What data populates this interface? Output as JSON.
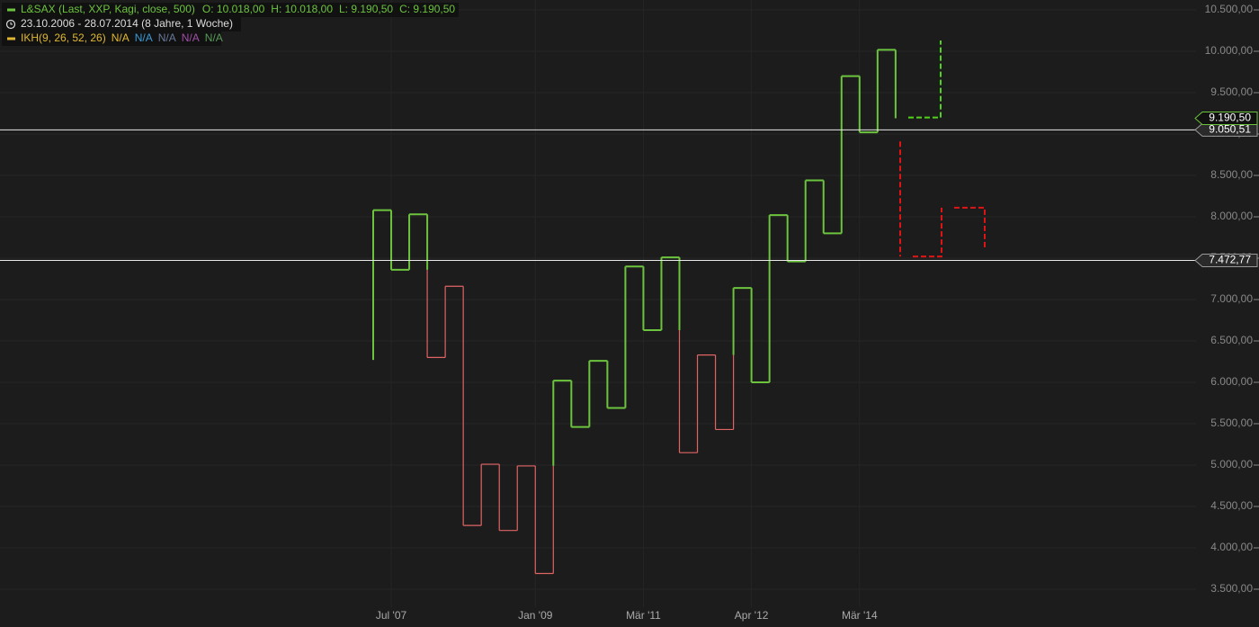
{
  "chart_data": {
    "type": "kagi",
    "legend": {
      "instrument": "L&SAX (Last, XXP, Kagi, close, 500)",
      "open": "O: 10.018,00",
      "high": "H: 10.018,00",
      "low": "L: 9.190,50",
      "close": "C: 9.190,50",
      "period": "23.10.2006 - 28.07.2014 (8 Jahre, 1 Woche)",
      "indicator": "IKH(9, 26, 52, 26)",
      "indicator_values": [
        {
          "label": "N/A",
          "color": "#e0b830"
        },
        {
          "label": "N/A",
          "color": "#3a9ad8"
        },
        {
          "label": "N/A",
          "color": "#6a7a9a"
        },
        {
          "label": "N/A",
          "color": "#a050a8"
        },
        {
          "label": "N/A",
          "color": "#5a9a5a"
        }
      ],
      "indicator_color": "#e0b830"
    },
    "categories": [
      null,
      "Jul '07",
      null,
      null,
      null,
      null,
      null,
      null,
      null,
      "Jan '09",
      null,
      null,
      null,
      null,
      null,
      "Mär '11",
      null,
      null,
      null,
      null,
      null,
      "Apr '12",
      null,
      null,
      null,
      null,
      null,
      "Mär '14",
      null,
      null
    ],
    "start_value": 6270,
    "series": [
      {
        "name": "L&SAX (Last, XXP, Kagi, close, 500)",
        "yang_color": "#6cc43e",
        "yin_color": "#e06464",
        "values": [
          8080,
          7360,
          8030,
          6300,
          7160,
          4270,
          5010,
          4210,
          4990,
          3690,
          6020,
          5460,
          6260,
          5690,
          7400,
          6630,
          7510,
          5150,
          6330,
          5430,
          7140,
          6000,
          8020,
          7460,
          8440,
          7800,
          9700,
          9020,
          10018,
          9190.5
        ]
      }
    ],
    "projections": [
      {
        "color": "#4fd41a",
        "values": [
          9200,
          10130
        ]
      },
      {
        "color": "#e01414",
        "values": [
          8910,
          7520,
          8110,
          7630
        ]
      }
    ],
    "last_price": {
      "value": 9190.5,
      "label": "9.190,50",
      "color": "#6cc43e"
    },
    "hlines": [
      {
        "value": 9050.51,
        "label": "9.050,51"
      },
      {
        "value": 7472.77,
        "label": "7.472,77"
      }
    ],
    "ylim": [
      3500,
      10500
    ],
    "yticks": [
      {
        "value": 3500,
        "label": "3.500,00"
      },
      {
        "value": 4000,
        "label": "4.000,00"
      },
      {
        "value": 4500,
        "label": "4.500,00"
      },
      {
        "value": 5000,
        "label": "5.000,00"
      },
      {
        "value": 5500,
        "label": "5.500,00"
      },
      {
        "value": 6000,
        "label": "6.000,00"
      },
      {
        "value": 6500,
        "label": "6.500,00"
      },
      {
        "value": 7000,
        "label": "7.000,00"
      },
      {
        "value": 7500,
        "label": "7.500,00"
      },
      {
        "value": 8000,
        "label": "8.000,00"
      },
      {
        "value": 8500,
        "label": "8.500,00"
      },
      {
        "value": 9000,
        "label": "9.000,00"
      },
      {
        "value": 9500,
        "label": "9.500,00"
      },
      {
        "value": 10000,
        "label": "10.000,00"
      },
      {
        "value": 10500,
        "label": "10.500,00"
      }
    ],
    "grid": true
  }
}
